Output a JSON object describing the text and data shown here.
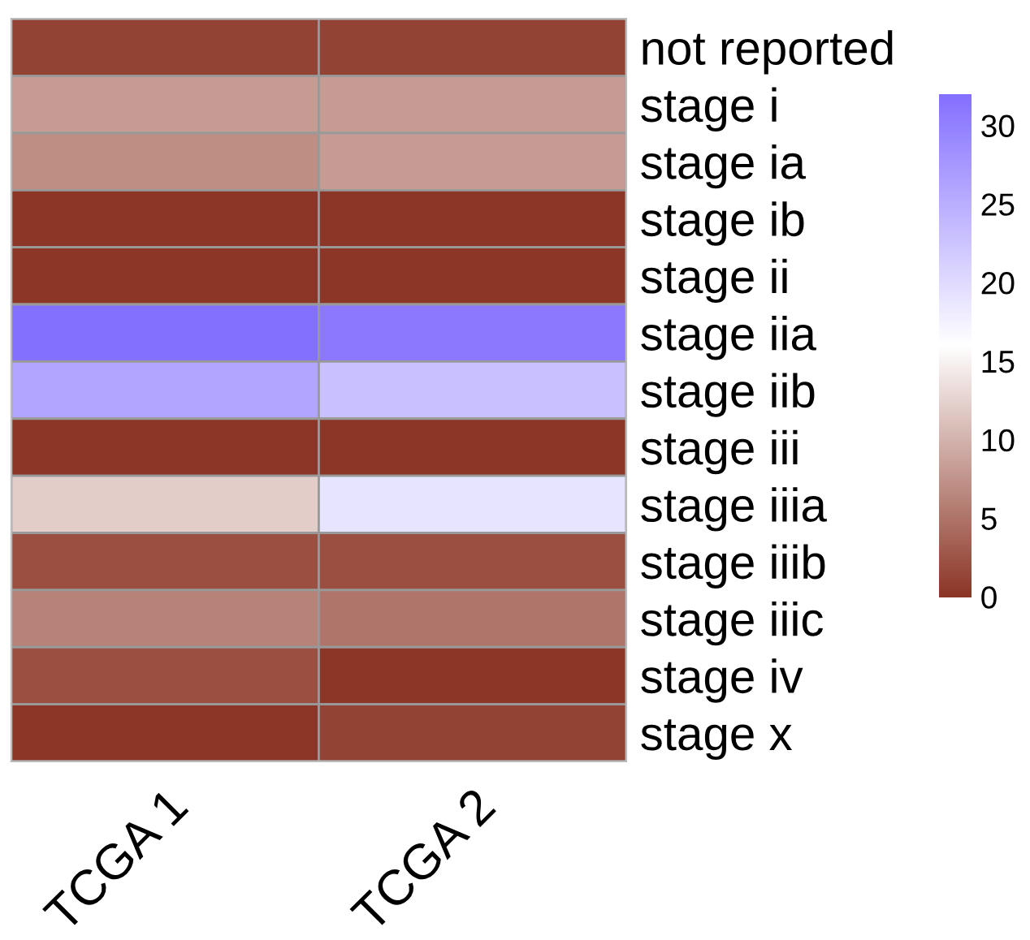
{
  "chart_data": {
    "type": "heatmap",
    "categories": [
      "TCGA 1",
      "TCGA 2"
    ],
    "y_categories": [
      "not reported",
      "stage i",
      "stage ia",
      "stage ib",
      "stage ii",
      "stage iia",
      "stage iib",
      "stage iii",
      "stage iiia",
      "stage iiib",
      "stage iiic",
      "stage iv",
      "stage x"
    ],
    "cells": [
      [
        1,
        1
      ],
      [
        8,
        8
      ],
      [
        7,
        8
      ],
      [
        0,
        0
      ],
      [
        0,
        0
      ],
      [
        32,
        31
      ],
      [
        26,
        23
      ],
      [
        0,
        0
      ],
      [
        12,
        19
      ],
      [
        2,
        2
      ],
      [
        6,
        5
      ],
      [
        2,
        0
      ],
      [
        0,
        1
      ]
    ],
    "clim": [
      0,
      32
    ],
    "cticks": [
      0,
      5,
      10,
      15,
      20,
      25,
      30
    ],
    "colors": [
      "#8b3626",
      "#ffffff",
      "#8470ff"
    ]
  }
}
